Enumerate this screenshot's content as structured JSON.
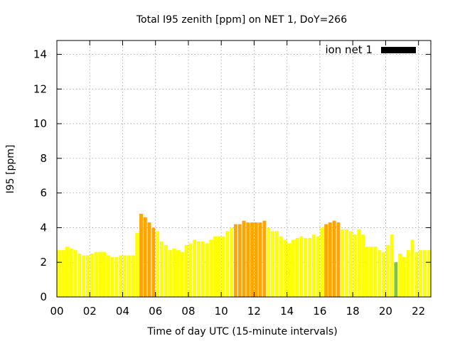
{
  "chart_data": {
    "type": "bar",
    "title": "Total I95 zenith [ppm] on NET 1, DoY=266",
    "xlabel": "Time of day UTC (15-minute intervals)",
    "ylabel": "I95 [ppm]",
    "xlim": [
      0,
      22.75
    ],
    "ylim": [
      0,
      14.8
    ],
    "xticks": [
      "00",
      "02",
      "04",
      "06",
      "08",
      "10",
      "12",
      "14",
      "16",
      "18",
      "20",
      "22"
    ],
    "yticks": [
      "0",
      "2",
      "4",
      "6",
      "8",
      "10",
      "12",
      "14"
    ],
    "grid": true,
    "legend": {
      "position": "top-right",
      "label": "ion net 1",
      "color": "#000000"
    },
    "bar_width_hours": 0.21,
    "series": [
      {
        "name": "ion net 1",
        "bars": [
          {
            "t": 0.125,
            "v": 2.7,
            "c": "#ffff00"
          },
          {
            "t": 0.375,
            "v": 2.7,
            "c": "#ffff00"
          },
          {
            "t": 0.625,
            "v": 2.9,
            "c": "#ffff00"
          },
          {
            "t": 0.875,
            "v": 2.8,
            "c": "#ffff00"
          },
          {
            "t": 1.125,
            "v": 2.7,
            "c": "#ffff00"
          },
          {
            "t": 1.375,
            "v": 2.5,
            "c": "#ffff00"
          },
          {
            "t": 1.625,
            "v": 2.4,
            "c": "#ffff00"
          },
          {
            "t": 1.875,
            "v": 2.4,
            "c": "#ffff00"
          },
          {
            "t": 2.125,
            "v": 2.5,
            "c": "#ffff00"
          },
          {
            "t": 2.375,
            "v": 2.6,
            "c": "#ffff00"
          },
          {
            "t": 2.625,
            "v": 2.6,
            "c": "#ffff00"
          },
          {
            "t": 2.875,
            "v": 2.6,
            "c": "#ffff00"
          },
          {
            "t": 3.125,
            "v": 2.4,
            "c": "#ffff00"
          },
          {
            "t": 3.375,
            "v": 2.3,
            "c": "#ffff00"
          },
          {
            "t": 3.625,
            "v": 2.3,
            "c": "#ffff00"
          },
          {
            "t": 3.875,
            "v": 2.4,
            "c": "#ffff00"
          },
          {
            "t": 4.125,
            "v": 2.4,
            "c": "#ffff00"
          },
          {
            "t": 4.375,
            "v": 2.4,
            "c": "#ffff00"
          },
          {
            "t": 4.625,
            "v": 2.4,
            "c": "#ffff00"
          },
          {
            "t": 4.875,
            "v": 3.7,
            "c": "#ffff00"
          },
          {
            "t": 5.125,
            "v": 4.8,
            "c": "#ffa500"
          },
          {
            "t": 5.375,
            "v": 4.6,
            "c": "#ffa500"
          },
          {
            "t": 5.625,
            "v": 4.3,
            "c": "#ffa500"
          },
          {
            "t": 5.875,
            "v": 4.0,
            "c": "#ffa500"
          },
          {
            "t": 6.125,
            "v": 3.8,
            "c": "#ffff00"
          },
          {
            "t": 6.375,
            "v": 3.2,
            "c": "#ffff00"
          },
          {
            "t": 6.625,
            "v": 3.0,
            "c": "#ffff00"
          },
          {
            "t": 6.875,
            "v": 2.7,
            "c": "#ffff00"
          },
          {
            "t": 7.125,
            "v": 2.8,
            "c": "#ffff00"
          },
          {
            "t": 7.375,
            "v": 2.7,
            "c": "#ffff00"
          },
          {
            "t": 7.625,
            "v": 2.6,
            "c": "#ffff00"
          },
          {
            "t": 7.875,
            "v": 3.0,
            "c": "#ffff00"
          },
          {
            "t": 8.125,
            "v": 3.1,
            "c": "#ffff00"
          },
          {
            "t": 8.375,
            "v": 3.3,
            "c": "#ffff00"
          },
          {
            "t": 8.625,
            "v": 3.2,
            "c": "#ffff00"
          },
          {
            "t": 8.875,
            "v": 3.2,
            "c": "#ffff00"
          },
          {
            "t": 9.125,
            "v": 3.1,
            "c": "#ffff00"
          },
          {
            "t": 9.375,
            "v": 3.3,
            "c": "#ffff00"
          },
          {
            "t": 9.625,
            "v": 3.5,
            "c": "#ffff00"
          },
          {
            "t": 9.875,
            "v": 3.5,
            "c": "#ffff00"
          },
          {
            "t": 10.125,
            "v": 3.5,
            "c": "#ffff00"
          },
          {
            "t": 10.375,
            "v": 3.8,
            "c": "#ffff00"
          },
          {
            "t": 10.625,
            "v": 4.0,
            "c": "#ffff00"
          },
          {
            "t": 10.875,
            "v": 4.2,
            "c": "#ffa500"
          },
          {
            "t": 11.125,
            "v": 4.2,
            "c": "#ffa500"
          },
          {
            "t": 11.375,
            "v": 4.4,
            "c": "#ffa500"
          },
          {
            "t": 11.625,
            "v": 4.3,
            "c": "#ffa500"
          },
          {
            "t": 11.875,
            "v": 4.3,
            "c": "#ffa500"
          },
          {
            "t": 12.125,
            "v": 4.3,
            "c": "#ffa500"
          },
          {
            "t": 12.375,
            "v": 4.3,
            "c": "#ffa500"
          },
          {
            "t": 12.625,
            "v": 4.4,
            "c": "#ffa500"
          },
          {
            "t": 12.875,
            "v": 4.0,
            "c": "#ffff00"
          },
          {
            "t": 13.125,
            "v": 3.8,
            "c": "#ffff00"
          },
          {
            "t": 13.375,
            "v": 3.8,
            "c": "#ffff00"
          },
          {
            "t": 13.625,
            "v": 3.5,
            "c": "#ffff00"
          },
          {
            "t": 13.875,
            "v": 3.3,
            "c": "#ffff00"
          },
          {
            "t": 14.125,
            "v": 3.1,
            "c": "#ffff00"
          },
          {
            "t": 14.375,
            "v": 3.3,
            "c": "#ffff00"
          },
          {
            "t": 14.625,
            "v": 3.4,
            "c": "#ffff00"
          },
          {
            "t": 14.875,
            "v": 3.5,
            "c": "#ffff00"
          },
          {
            "t": 15.125,
            "v": 3.4,
            "c": "#ffff00"
          },
          {
            "t": 15.375,
            "v": 3.4,
            "c": "#ffff00"
          },
          {
            "t": 15.625,
            "v": 3.6,
            "c": "#ffff00"
          },
          {
            "t": 15.875,
            "v": 3.5,
            "c": "#ffff00"
          },
          {
            "t": 16.125,
            "v": 4.0,
            "c": "#ffff00"
          },
          {
            "t": 16.375,
            "v": 4.2,
            "c": "#ffa500"
          },
          {
            "t": 16.625,
            "v": 4.3,
            "c": "#ffa500"
          },
          {
            "t": 16.875,
            "v": 4.4,
            "c": "#ffa500"
          },
          {
            "t": 17.125,
            "v": 4.3,
            "c": "#ffa500"
          },
          {
            "t": 17.375,
            "v": 3.9,
            "c": "#ffff00"
          },
          {
            "t": 17.625,
            "v": 3.9,
            "c": "#ffff00"
          },
          {
            "t": 17.875,
            "v": 3.8,
            "c": "#ffff00"
          },
          {
            "t": 18.125,
            "v": 3.6,
            "c": "#ffff00"
          },
          {
            "t": 18.375,
            "v": 3.9,
            "c": "#ffff00"
          },
          {
            "t": 18.625,
            "v": 3.6,
            "c": "#ffff00"
          },
          {
            "t": 18.875,
            "v": 2.9,
            "c": "#ffff00"
          },
          {
            "t": 19.125,
            "v": 2.9,
            "c": "#ffff00"
          },
          {
            "t": 19.375,
            "v": 2.9,
            "c": "#ffff00"
          },
          {
            "t": 19.625,
            "v": 2.7,
            "c": "#ffff00"
          },
          {
            "t": 19.875,
            "v": 2.6,
            "c": "#ffff00"
          },
          {
            "t": 20.125,
            "v": 3.0,
            "c": "#ffff00"
          },
          {
            "t": 20.375,
            "v": 3.6,
            "c": "#ffff00"
          },
          {
            "t": 20.625,
            "v": 2.0,
            "c": "#7fc440"
          },
          {
            "t": 20.875,
            "v": 2.5,
            "c": "#ffff00"
          },
          {
            "t": 21.125,
            "v": 2.3,
            "c": "#ffff00"
          },
          {
            "t": 21.375,
            "v": 2.7,
            "c": "#ffff00"
          },
          {
            "t": 21.625,
            "v": 3.3,
            "c": "#ffff00"
          },
          {
            "t": 21.875,
            "v": 2.6,
            "c": "#ffff00"
          },
          {
            "t": 22.125,
            "v": 2.7,
            "c": "#ffff00"
          },
          {
            "t": 22.375,
            "v": 2.7,
            "c": "#ffff00"
          },
          {
            "t": 22.625,
            "v": 2.7,
            "c": "#ffff00"
          }
        ]
      }
    ]
  }
}
